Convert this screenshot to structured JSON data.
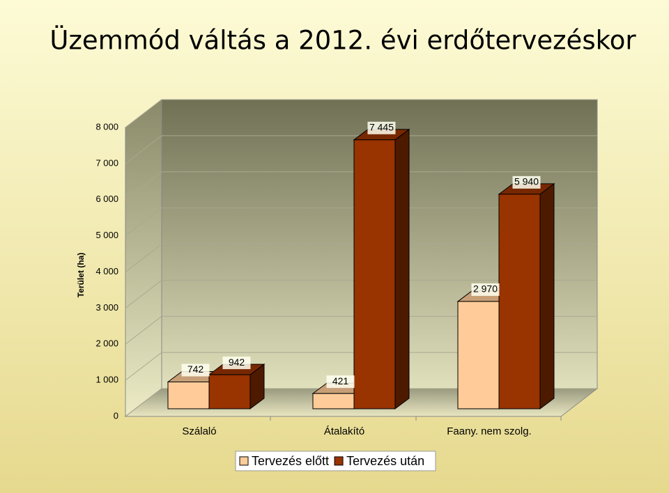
{
  "chart_data": {
    "type": "bar3d",
    "title": "Üzemmód váltás a 2012. évi erdőtervezéskor",
    "y_label": "Terület (ha)",
    "categories": [
      "Szálaló",
      "Átalakító",
      "Faany. nem szolg."
    ],
    "series": [
      {
        "name": "Tervezés előtt",
        "color": "#ffcc99",
        "values": [
          742,
          421,
          2970
        ],
        "value_labels": [
          "742",
          "421",
          "2 970"
        ]
      },
      {
        "name": "Tervezés után",
        "color": "#993300",
        "values": [
          942,
          7445,
          5940
        ],
        "value_labels": [
          "942",
          "7 445",
          "5 940"
        ]
      }
    ],
    "ylim": [
      0,
      8000
    ],
    "yticks": [
      0,
      {
        "value": 1000,
        "label": "1 000"
      },
      {
        "value": 2000,
        "label": "2 000"
      },
      {
        "value": 3000,
        "label": "3 000"
      },
      {
        "value": 4000,
        "label": "4 000"
      },
      {
        "value": 5000,
        "label": "5 000"
      },
      {
        "value": 6000,
        "label": "6 000"
      },
      {
        "value": 7000,
        "label": "7 000"
      },
      {
        "value": 8000,
        "label": "8 000"
      }
    ],
    "grid": true
  }
}
